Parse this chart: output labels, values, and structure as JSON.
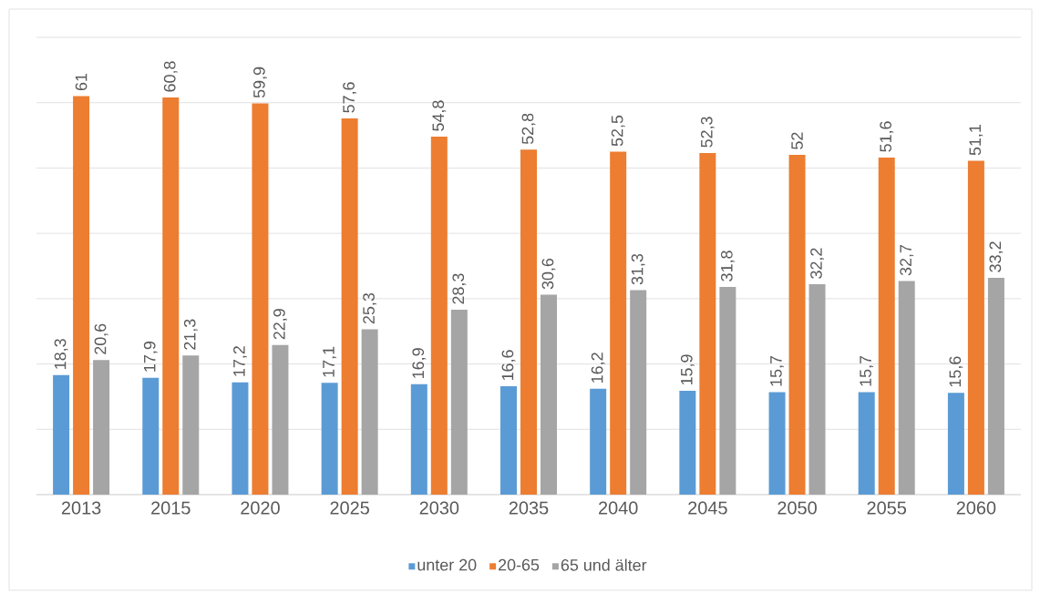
{
  "chart_data": {
    "type": "bar",
    "categories": [
      "2013",
      "2015",
      "2020",
      "2025",
      "2030",
      "2035",
      "2040",
      "2045",
      "2050",
      "2055",
      "2060"
    ],
    "series": [
      {
        "name": "unter 20",
        "color": "#5b9bd5",
        "values": [
          18.3,
          17.9,
          17.2,
          17.1,
          16.9,
          16.6,
          16.2,
          15.9,
          15.7,
          15.7,
          15.6
        ],
        "value_labels": [
          "18,3",
          "17,9",
          "17,2",
          "17,1",
          "16,9",
          "16,6",
          "16,2",
          "15,9",
          "15,7",
          "15,7",
          "15,6"
        ]
      },
      {
        "name": "20-65",
        "color": "#ed7d31",
        "values": [
          61,
          60.8,
          59.9,
          57.6,
          54.8,
          52.8,
          52.5,
          52.3,
          52,
          51.6,
          51.1
        ],
        "value_labels": [
          "61",
          "60,8",
          "59,9",
          "57,6",
          "54,8",
          "52,8",
          "52,5",
          "52,3",
          "52",
          "51,6",
          "51,1"
        ]
      },
      {
        "name": "65 und älter",
        "color": "#a5a5a5",
        "values": [
          20.6,
          21.3,
          22.9,
          25.3,
          28.3,
          30.6,
          31.3,
          31.8,
          32.2,
          32.7,
          33.2
        ],
        "value_labels": [
          "20,6",
          "21,3",
          "22,9",
          "25,3",
          "28,3",
          "30,6",
          "31,3",
          "31,8",
          "32,2",
          "32,7",
          "33,2"
        ]
      }
    ],
    "ylim": [
      0,
      70
    ],
    "yticks": [
      {
        "value": 0,
        "label": null
      },
      {
        "value": 10,
        "label": null
      },
      {
        "value": 20,
        "label": null
      },
      {
        "value": 30,
        "label": null
      },
      {
        "value": 40,
        "label": null
      },
      {
        "value": 50,
        "label": null
      },
      {
        "value": 60,
        "label": null
      },
      {
        "value": 70,
        "label": null
      }
    ],
    "tick_labels": "x",
    "grid": "y",
    "legend": "bottom"
  }
}
